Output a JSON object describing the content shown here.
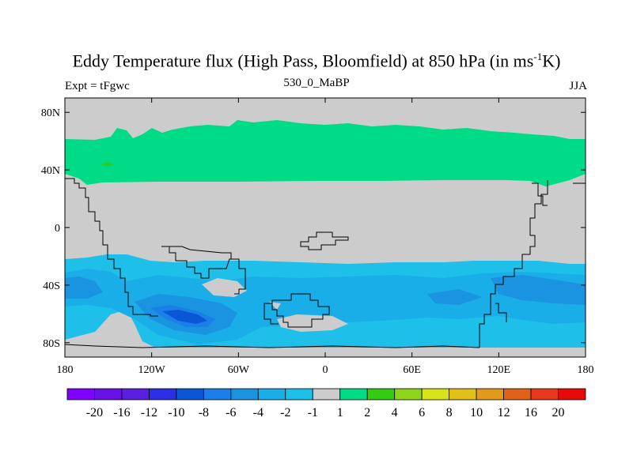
{
  "header": {
    "title_main": "Eddy Temperature flux (High Pass, Bloomfield) at 850 hPa (in ms",
    "title_sup": "-1",
    "title_tail": "K)",
    "left_label": "Expt = tFgwc",
    "center_label": "530_0_MaBP",
    "right_label": "JJA"
  },
  "chart_data": {
    "type": "heatmap",
    "title": "Eddy Temperature flux (High Pass, Bloomfield) at 850 hPa (in ms-1K)",
    "subtitle": "530_0_MaBP",
    "experiment": "Expt = tFgwc",
    "season": "JJA",
    "x_range": [
      -180,
      180
    ],
    "y_range": [
      -90,
      90
    ],
    "x_ticks": [
      {
        "value": -180,
        "label": "180"
      },
      {
        "value": -120,
        "label": "120W"
      },
      {
        "value": -60,
        "label": "60W"
      },
      {
        "value": 0,
        "label": "0"
      },
      {
        "value": 60,
        "label": "60E"
      },
      {
        "value": 120,
        "label": "120E"
      },
      {
        "value": 180,
        "label": "180"
      }
    ],
    "y_ticks": [
      {
        "value": 80,
        "label": "80N"
      },
      {
        "value": 40,
        "label": "40N"
      },
      {
        "value": 0,
        "label": "0"
      },
      {
        "value": -40,
        "label": "40S"
      },
      {
        "value": -80,
        "label": "80S"
      }
    ],
    "colorbar": {
      "colors": [
        "#7f00ff",
        "#6a12e6",
        "#5a1fe0",
        "#2b2fe6",
        "#0a57d6",
        "#1a7fe8",
        "#1a93e0",
        "#1aaee8",
        "#1ec0ea",
        "#cccccc",
        "#00db87",
        "#33cc10",
        "#8fd41a",
        "#d8e21a",
        "#e2c01a",
        "#e29a1a",
        "#e0621a",
        "#e6381a",
        "#e60a0a"
      ],
      "labels": [
        "-20",
        "-16",
        "-12",
        "-10",
        "-8",
        "-6",
        "-4",
        "-2",
        "-1",
        "1",
        "2",
        "4",
        "6",
        "8",
        "10",
        "12",
        "16",
        "20"
      ]
    },
    "regions": [
      {
        "level": "1 to 2",
        "description": "band ~30N-70N",
        "value": 1.5
      },
      {
        "level": "2 to 4",
        "description": "small patch near 135W 40N",
        "value": 3
      },
      {
        "level": "-1 to 1",
        "description": "tropics and polar caps",
        "value": 0
      },
      {
        "level": "-2 to -1",
        "description": "band ~25S-80S",
        "value": -1.5
      },
      {
        "level": "-4 to -2",
        "description": "core 40S-70S",
        "value": -3
      },
      {
        "level": "-6 to -4",
        "description": "around 110W 60S",
        "value": -5
      },
      {
        "level": "-8 to -6",
        "description": "core near 100W 65S",
        "value": -7
      }
    ]
  }
}
